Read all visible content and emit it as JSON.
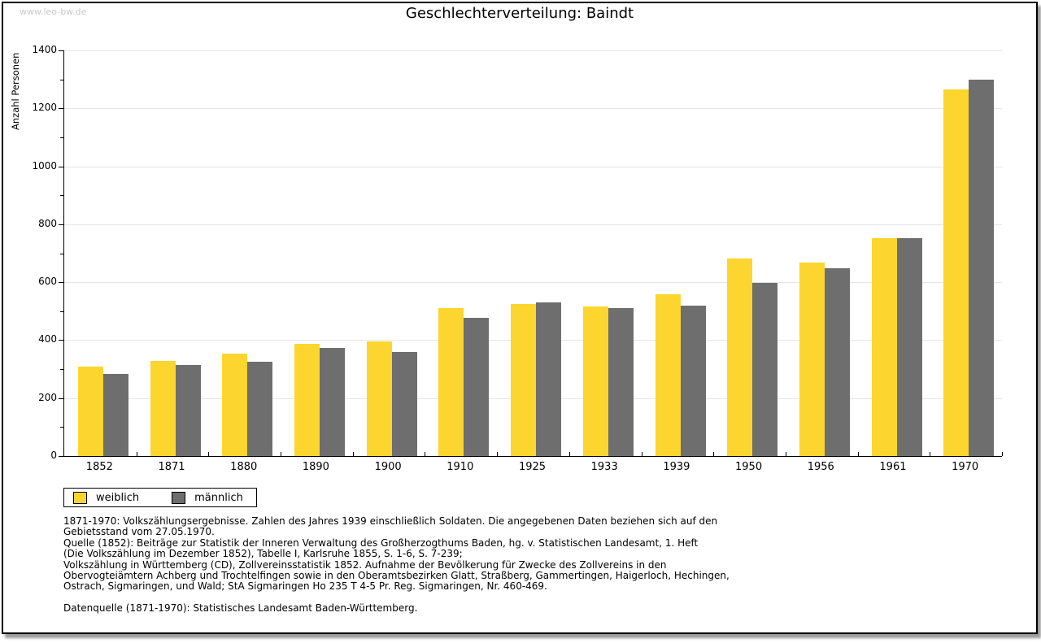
{
  "watermark": "www.leo-bw.de",
  "title": "Geschlechterverteilung: Baindt",
  "chart_data": {
    "type": "bar",
    "title": "Geschlechterverteilung: Baindt",
    "xlabel": "",
    "ylabel": "Anzahl Personen",
    "categories": [
      "1852",
      "1871",
      "1880",
      "1890",
      "1900",
      "1910",
      "1925",
      "1933",
      "1939",
      "1950",
      "1956",
      "1961",
      "1970"
    ],
    "series": [
      {
        "name": "weiblich",
        "color": "#fcd52f",
        "values": [
          310,
          327,
          354,
          387,
          396,
          511,
          525,
          516,
          559,
          682,
          667,
          752,
          1264
        ]
      },
      {
        "name": "männlich",
        "color": "#6e6e6e",
        "values": [
          282,
          315,
          326,
          373,
          360,
          477,
          531,
          511,
          519,
          598,
          649,
          752,
          1299
        ]
      }
    ],
    "ylim": [
      0,
      1400
    ],
    "yticks": [
      0,
      200,
      400,
      600,
      800,
      1000,
      1200,
      1400
    ],
    "minor_ytick_step": 100,
    "grid": "horizontal-major",
    "gridline_color": "#e6e6e6",
    "legend_position": "below-left"
  },
  "legend": {
    "items": [
      {
        "label": "weiblich",
        "color": "#fcd52f"
      },
      {
        "label": "männlich",
        "color": "#6e6e6e"
      }
    ]
  },
  "footnotes": {
    "lines": [
      "1871-1970: Volkszählungsergebnisse. Zahlen des Jahres 1939 einschließlich Soldaten. Die angegebenen Daten beziehen sich auf den",
      "Gebietsstand vom 27.05.1970.",
      "Quelle (1852): Beiträge zur Statistik der Inneren Verwaltung des Großherzogthums Baden, hg. v. Statistischen Landesamt, 1. Heft",
      "(Die Volkszählung im Dezember 1852), Tabelle I, Karlsruhe 1855, S. 1-6, S. 7-239;",
      "Volkszählung in Württemberg (CD), Zollvereinsstatistik 1852. Aufnahme der Bevölkerung für Zwecke des Zollvereins in den",
      "Obervogteiämtern Achberg und Trochtelfingen sowie in den Oberamtsbezirken Glatt, Straßberg, Gammertingen, Haigerloch, Hechingen,",
      "Ostrach, Sigmaringen, und Wald; StA Sigmaringen Ho 235 T 4-5 Pr. Reg. Sigmaringen, Nr. 460-469."
    ],
    "datasource": "Datenquelle (1871-1970): Statistisches Landesamt Baden-Württemberg."
  }
}
